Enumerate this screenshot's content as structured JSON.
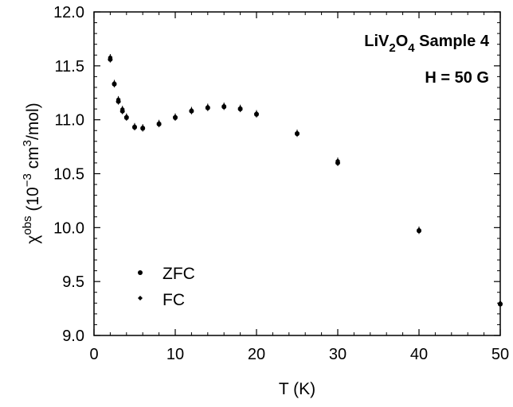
{
  "chart_data": {
    "type": "scatter",
    "title": "",
    "xlabel": "T (K)",
    "ylabel": {
      "symbol": "χ",
      "superscript": "obs",
      "text_before_exp": "(10",
      "exponent": "−3",
      "text_units": " cm",
      "units_exponent": "3",
      "text_end": "/mol)"
    },
    "xlim": [
      0,
      50
    ],
    "ylim": [
      9.0,
      12.0
    ],
    "xticks": [
      "0",
      "10",
      "20",
      "30",
      "40",
      "50"
    ],
    "yticks": [
      "9.0",
      "9.5",
      "10.0",
      "10.5",
      "11.0",
      "11.5",
      "12.0"
    ],
    "grid": false,
    "legend_position": "bottom-left",
    "annotations": {
      "sample_prefix": "LiV",
      "sub1": "2",
      "mid": "O",
      "sub2": "4",
      "sample_suffix": " Sample 4",
      "field": "H = 50 G"
    },
    "series": [
      {
        "name": "ZFC",
        "marker": "circle",
        "x": [
          2.0,
          2.5,
          3.0,
          3.5,
          4.0,
          5.0,
          6.0,
          8.0,
          10.0,
          12.0,
          14.0,
          16.0,
          18.0,
          20.0,
          25.0,
          30.0,
          40.0,
          50.0
        ],
        "y": [
          11.56,
          11.33,
          11.17,
          11.08,
          11.02,
          10.93,
          10.92,
          10.96,
          11.02,
          11.08,
          11.11,
          11.12,
          11.1,
          11.05,
          10.87,
          10.6,
          9.97,
          9.29
        ]
      },
      {
        "name": "FC",
        "marker": "diamond",
        "x": [
          2.0,
          2.5,
          3.0,
          3.5,
          4.0,
          5.0,
          6.0,
          8.0,
          10.0,
          12.0,
          14.0,
          16.0,
          18.0,
          20.0,
          25.0,
          30.0,
          40.0,
          50.0
        ],
        "y": [
          11.58,
          11.34,
          11.19,
          11.1,
          11.03,
          10.94,
          10.93,
          10.97,
          11.03,
          11.09,
          11.12,
          11.13,
          11.11,
          11.06,
          10.88,
          10.62,
          9.98,
          9.3
        ]
      }
    ]
  }
}
